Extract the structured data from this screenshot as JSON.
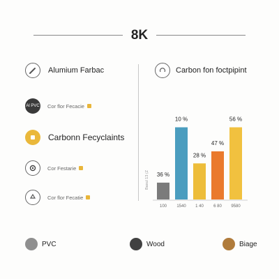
{
  "header": {
    "title": "8K"
  },
  "left": {
    "items": [
      {
        "title": "Alumium Farbac",
        "icon": "pencil-icon"
      },
      {
        "sub": "Cor flor Fecacie",
        "icon_text": "Al PVC",
        "badge": "puzzle-icon"
      },
      {
        "title": "Carbonn Fecyclaints",
        "icon": "tag-icon"
      },
      {
        "sub": "Cor Festarie",
        "icon": "gear-icon",
        "badge": "square-icon"
      },
      {
        "sub": "Cor flor Fecatie",
        "icon": "recycle-icon",
        "badge": "puzzle-icon"
      }
    ]
  },
  "right": {
    "title": "Carbon fon foctpipint",
    "icon": "recycle-icon"
  },
  "chart_data": {
    "type": "bar",
    "title": "Carbon fon foctpipint",
    "ylabel": "Basul 13 (Z",
    "xlabel": "",
    "categories": [
      "100",
      "1540",
      "1 40",
      "6 80",
      "9580"
    ],
    "values": [
      36,
      10,
      28,
      47,
      56
    ],
    "data_labels": [
      "36 %",
      "10 %",
      "28 %",
      "47 %",
      "56 %"
    ],
    "bar_levels": [
      0.21,
      0.9,
      0.45,
      0.6,
      0.9
    ],
    "colors": [
      "#7b7b7b",
      "#4b9dbf",
      "#edbd3a",
      "#ea7a2d",
      "#f1c13f"
    ],
    "grid": false,
    "legend": "bottom"
  },
  "legend": [
    {
      "label": "PVC",
      "color": "#8f8f8f"
    },
    {
      "label": "Wood",
      "color": "#414141"
    },
    {
      "label": "Biage",
      "color": "#b07b3b"
    }
  ]
}
